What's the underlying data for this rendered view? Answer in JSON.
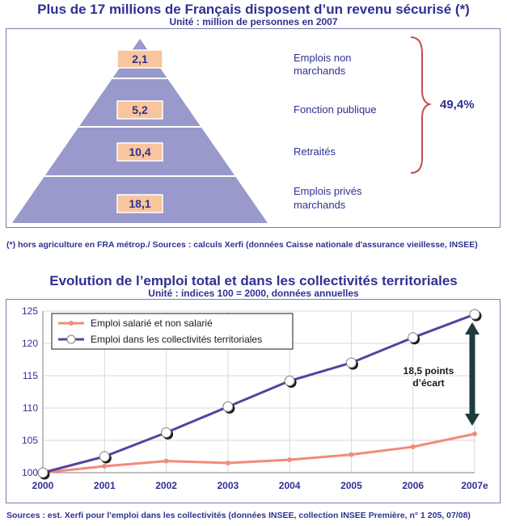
{
  "chart_data": [
    {
      "type": "pyramid",
      "title": "Plus de 17 millions de Français disposent d’un revenu sécurisé (*)",
      "subtitle": "Unité : million de personnes en 2007",
      "categories": [
        "Emplois non marchands",
        "Fonction publique",
        "Retraités",
        "Emplois privés marchands"
      ],
      "category_lines": [
        [
          "Emplois non",
          "marchands"
        ],
        [
          "Fonction publique"
        ],
        [
          "Retraités"
        ],
        [
          "Emplois privés",
          "marchands"
        ]
      ],
      "values": [
        2.1,
        5.2,
        10.4,
        18.1
      ],
      "value_labels": [
        "2,1",
        "5,2",
        "10,4",
        "18,1"
      ],
      "bracket_label": "49,4%",
      "footnote": "(*) hors agriculture en FRA métrop./ Sources : calculs Xerfi (données Caisse nationale d'assurance vieillesse, INSEE)",
      "colors": {
        "pyramid": "#9999cc",
        "label_box": "#f9c59c",
        "bracket": "#c0504d"
      }
    },
    {
      "type": "line",
      "title": "Evolution de l’emploi total et dans les collectivités territoriales",
      "subtitle": "Unité : indices 100 = 2000, données annuelles",
      "x": [
        "2000",
        "2001",
        "2002",
        "2003",
        "2004",
        "2005",
        "2006",
        "2007e"
      ],
      "ylim": [
        100,
        125
      ],
      "yticks": [
        100,
        105,
        110,
        115,
        120,
        125
      ],
      "series": [
        {
          "name": "Emploi salarié et non salarié",
          "color": "#f28b78",
          "values": [
            100,
            101.0,
            101.8,
            101.5,
            102.0,
            102.8,
            104.0,
            106.0
          ]
        },
        {
          "name": "Emploi dans les collectivités territoriales",
          "color": "#5b3fa0",
          "values": [
            100,
            102.5,
            106.2,
            110.2,
            114.2,
            117.0,
            120.9,
            124.5
          ]
        }
      ],
      "annotation_lines": [
        "18,5 points",
        "d’écart"
      ],
      "source": "Sources : est. Xerfi pour l'emploi dans les collectivités (données INSEE, collection INSEE Première, n° 1 205, 07/08)",
      "grid": true,
      "legend": "top-left"
    }
  ]
}
